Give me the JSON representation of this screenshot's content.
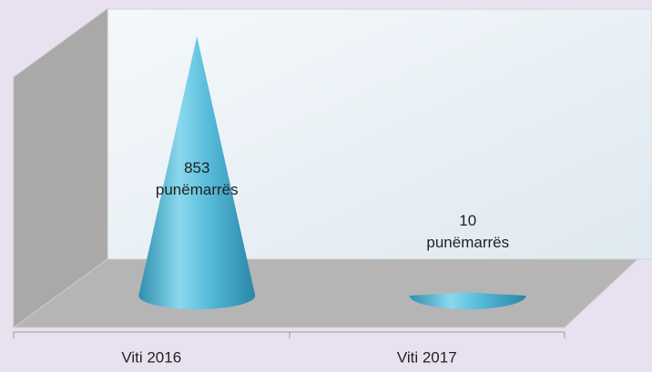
{
  "chart_data": {
    "type": "cone",
    "categories": [
      "Viti 2016",
      "Viti 2017"
    ],
    "values": [
      853,
      10
    ],
    "value_labels": [
      "853 punëmarrës",
      "10 punëmarrës"
    ],
    "color": "#4fb8d6"
  }
}
